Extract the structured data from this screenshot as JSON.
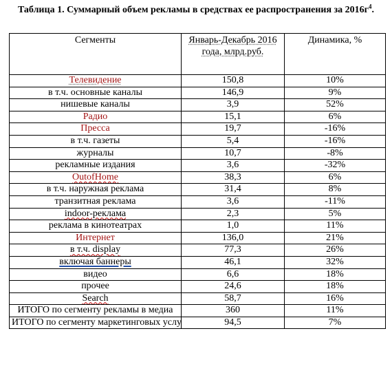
{
  "caption": {
    "text": "Таблица 1. Суммарный объем рекламы в средствах ее распространения за 2016г",
    "footnote_mark": "4",
    "period": "."
  },
  "table": {
    "headers": {
      "segment": "Сегменты",
      "volume": "Январь-Декабрь 2016 года, млрд.руб.",
      "dynamics": "Динамика, %"
    },
    "rows": [
      {
        "segment": "Телевидение",
        "volume": "150,8",
        "dynamics": "10%"
      },
      {
        "segment": "в т.ч. основные каналы",
        "volume": "146,9",
        "dynamics": "9%"
      },
      {
        "segment": "нишевые каналы",
        "volume": "3,9",
        "dynamics": "52%"
      },
      {
        "segment": "Радио",
        "volume": "15,1",
        "dynamics": "6%"
      },
      {
        "segment": "Пресса",
        "volume": "19,7",
        "dynamics": "-16%"
      },
      {
        "segment": "в т.ч. газеты",
        "volume": "5,4",
        "dynamics": "-16%"
      },
      {
        "segment": "журналы",
        "volume": "10,7",
        "dynamics": "-8%"
      },
      {
        "segment": "рекламные издания",
        "volume": "3,6",
        "dynamics": "-32%"
      },
      {
        "segment": "OutofHome",
        "volume": "38,3",
        "dynamics": "6%"
      },
      {
        "segment": "в т.ч. наружная реклама",
        "volume": "31,4",
        "dynamics": "8%"
      },
      {
        "segment": "транзитная реклама",
        "volume": "3,6",
        "dynamics": "-11%"
      },
      {
        "segment": "indoor-реклама",
        "volume": "2,3",
        "dynamics": "5%"
      },
      {
        "segment": "реклама в кинотеатрах",
        "volume": "1,0",
        "dynamics": "11%"
      },
      {
        "segment": "Интернет",
        "volume": "136,0",
        "dynamics": "21%"
      },
      {
        "segment": "в т.ч. display",
        "volume": "77,3",
        "dynamics": "26%"
      },
      {
        "segment": "включая баннеры",
        "volume": "46,1",
        "dynamics": "32%"
      },
      {
        "segment": "видео",
        "volume": "6,6",
        "dynamics": "18%"
      },
      {
        "segment": "прочее",
        "volume": "24,6",
        "dynamics": "18%"
      },
      {
        "segment": "Search",
        "volume": "58,7",
        "dynamics": "16%"
      }
    ],
    "totals": [
      {
        "segment": "ИТОГО по сегменту рекламы в медиа",
        "volume": "360",
        "dynamics": "11%"
      },
      {
        "segment": "ИТОГО по сегменту маркетинговых услуг",
        "volume": "94,5",
        "dynamics": "7%"
      }
    ]
  },
  "colors": {
    "highlight_segment_text": "#a31515",
    "border": "#000000"
  }
}
